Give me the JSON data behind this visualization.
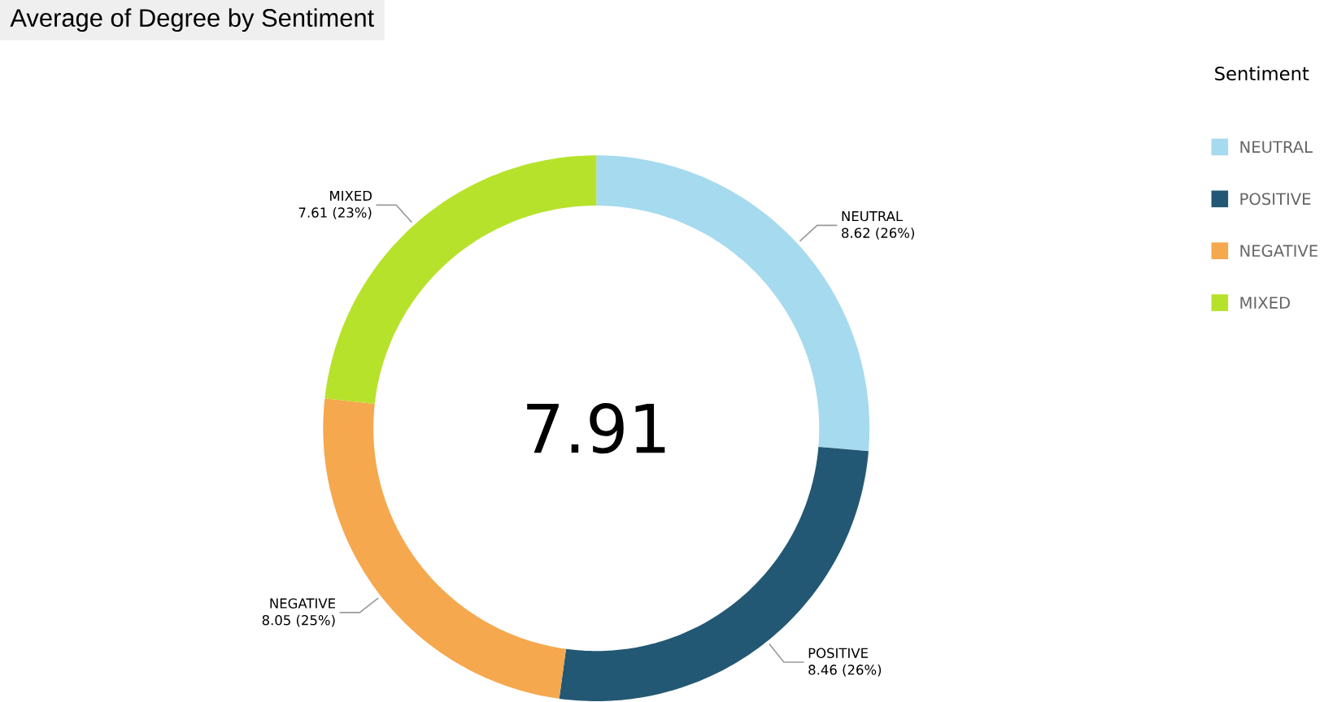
{
  "chart_data": {
    "type": "donut",
    "title": "Average of Degree by Sentiment",
    "legend_title": "Sentiment",
    "legend": "top right",
    "categories": [
      "NEUTRAL",
      "POSITIVE",
      "NEGATIVE",
      "MIXED"
    ],
    "values": [
      8.62,
      8.46,
      8.05,
      7.61
    ],
    "colors": [
      "#a6daee",
      "#235874",
      "#f5a84e",
      "#b7e22c"
    ],
    "value_labels": [
      "8.62 (26%)",
      "8.46 (26%)",
      "8.05 (25%)",
      "7.61 (23%)"
    ],
    "annotations": [
      "7.91"
    ]
  }
}
